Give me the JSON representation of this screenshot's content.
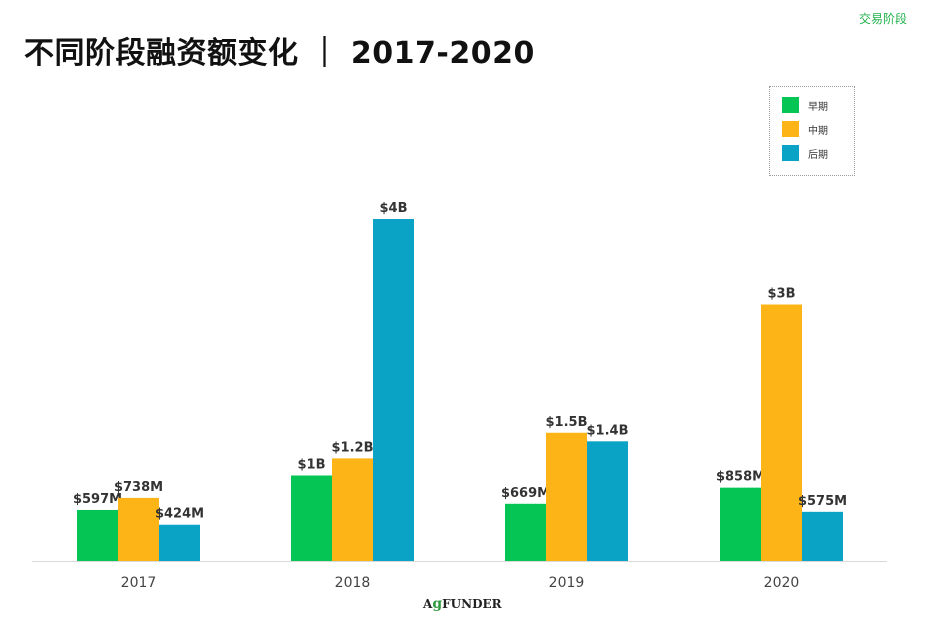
{
  "corner_label": "交易阶段",
  "title": "不同阶段融资额变化 ｜ 2017-2020",
  "logo": {
    "prefix": "A",
    "leaf": "g",
    "suffix": "FUNDER"
  },
  "legend": [
    {
      "label": "早期",
      "color": "#05c655"
    },
    {
      "label": "中期",
      "color": "#fcb417"
    },
    {
      "label": "后期",
      "color": "#0ba3c5"
    }
  ],
  "chart_data": {
    "type": "bar",
    "categories": [
      "2017",
      "2018",
      "2019",
      "2020"
    ],
    "series": [
      {
        "name": "早期",
        "color": "#05c655",
        "values": [
          597,
          1000,
          669,
          858
        ],
        "labels": [
          "$597M",
          "$1B",
          "$669M",
          "$858M"
        ]
      },
      {
        "name": "中期",
        "color": "#fcb417",
        "values": [
          738,
          1200,
          1500,
          3000
        ],
        "labels": [
          "$738M",
          "$1.2B",
          "$1.5B",
          "$3B"
        ]
      },
      {
        "name": "后期",
        "color": "#0ba3c5",
        "values": [
          424,
          4000,
          1400,
          575
        ],
        "labels": [
          "$424M",
          "$4B",
          "$1.4B",
          "$575M"
        ]
      }
    ],
    "ylim": [
      0,
      4000
    ],
    "legend_position": "top-right",
    "grid": false
  }
}
